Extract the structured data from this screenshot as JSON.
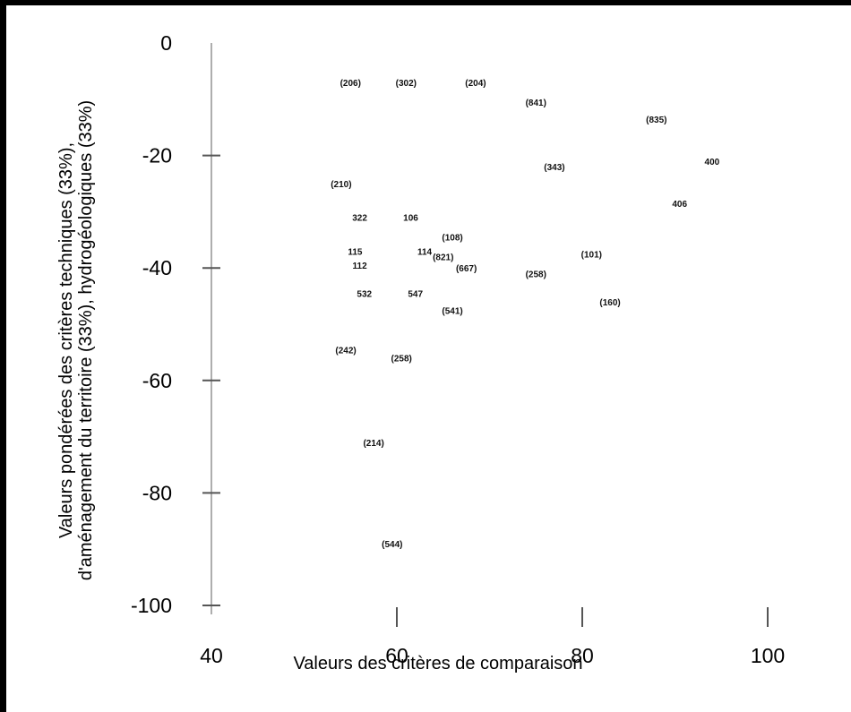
{
  "chart_data": {
    "type": "scatter",
    "title": "",
    "xlabel": "Valeurs des critères de comparaison",
    "ylabel_line1": "Valeurs pondérées des critères techniques (33%),",
    "ylabel_line2": "d'aménagement du territoire (33%), hydrogéologiques (33%)",
    "xlim": [
      40,
      100
    ],
    "ylim": [
      -100,
      0
    ],
    "x_ticks": [
      40,
      60,
      80,
      100
    ],
    "x_tick_labels": [
      "40",
      "60",
      "80",
      "100"
    ],
    "y_ticks": [
      0,
      -20,
      -40,
      -60,
      -80,
      -100
    ],
    "y_tick_labels": [
      "0",
      "-20",
      "-40",
      "-60",
      "-80",
      "-100"
    ],
    "grid": false,
    "points": [
      {
        "label": "(206)",
        "x": 55,
        "y": -7
      },
      {
        "label": "(302)",
        "x": 61,
        "y": -7
      },
      {
        "label": "(204)",
        "x": 68.5,
        "y": -7
      },
      {
        "label": "(841)",
        "x": 75,
        "y": -10.5
      },
      {
        "label": "(835)",
        "x": 88,
        "y": -13.5
      },
      {
        "label": "(343)",
        "x": 77,
        "y": -22
      },
      {
        "label": "400",
        "x": 94,
        "y": -21
      },
      {
        "label": "(210)",
        "x": 54,
        "y": -25
      },
      {
        "label": "406",
        "x": 90.5,
        "y": -28.5
      },
      {
        "label": "322",
        "x": 56,
        "y": -31
      },
      {
        "label": "106",
        "x": 61.5,
        "y": -31
      },
      {
        "label": "(108)",
        "x": 66,
        "y": -34.5
      },
      {
        "label": "115",
        "x": 55.5,
        "y": -37
      },
      {
        "label": "114",
        "x": 63,
        "y": -37
      },
      {
        "label": "(821)",
        "x": 65,
        "y": -38
      },
      {
        "label": "(101)",
        "x": 81,
        "y": -37.5
      },
      {
        "label": "112",
        "x": 56,
        "y": -39.5
      },
      {
        "label": "(667)",
        "x": 67.5,
        "y": -40
      },
      {
        "label": "(258)",
        "x": 75,
        "y": -41
      },
      {
        "label": "532",
        "x": 56.5,
        "y": -44.5
      },
      {
        "label": "547",
        "x": 62,
        "y": -44.5
      },
      {
        "label": "(160)",
        "x": 83,
        "y": -46
      },
      {
        "label": "(541)",
        "x": 66,
        "y": -47.5
      },
      {
        "label": "(242)",
        "x": 54.5,
        "y": -54.5
      },
      {
        "label": "(258)",
        "x": 60.5,
        "y": -56
      },
      {
        "label": "(214)",
        "x": 57.5,
        "y": -71
      },
      {
        "label": "(544)",
        "x": 59.5,
        "y": -89
      }
    ]
  }
}
